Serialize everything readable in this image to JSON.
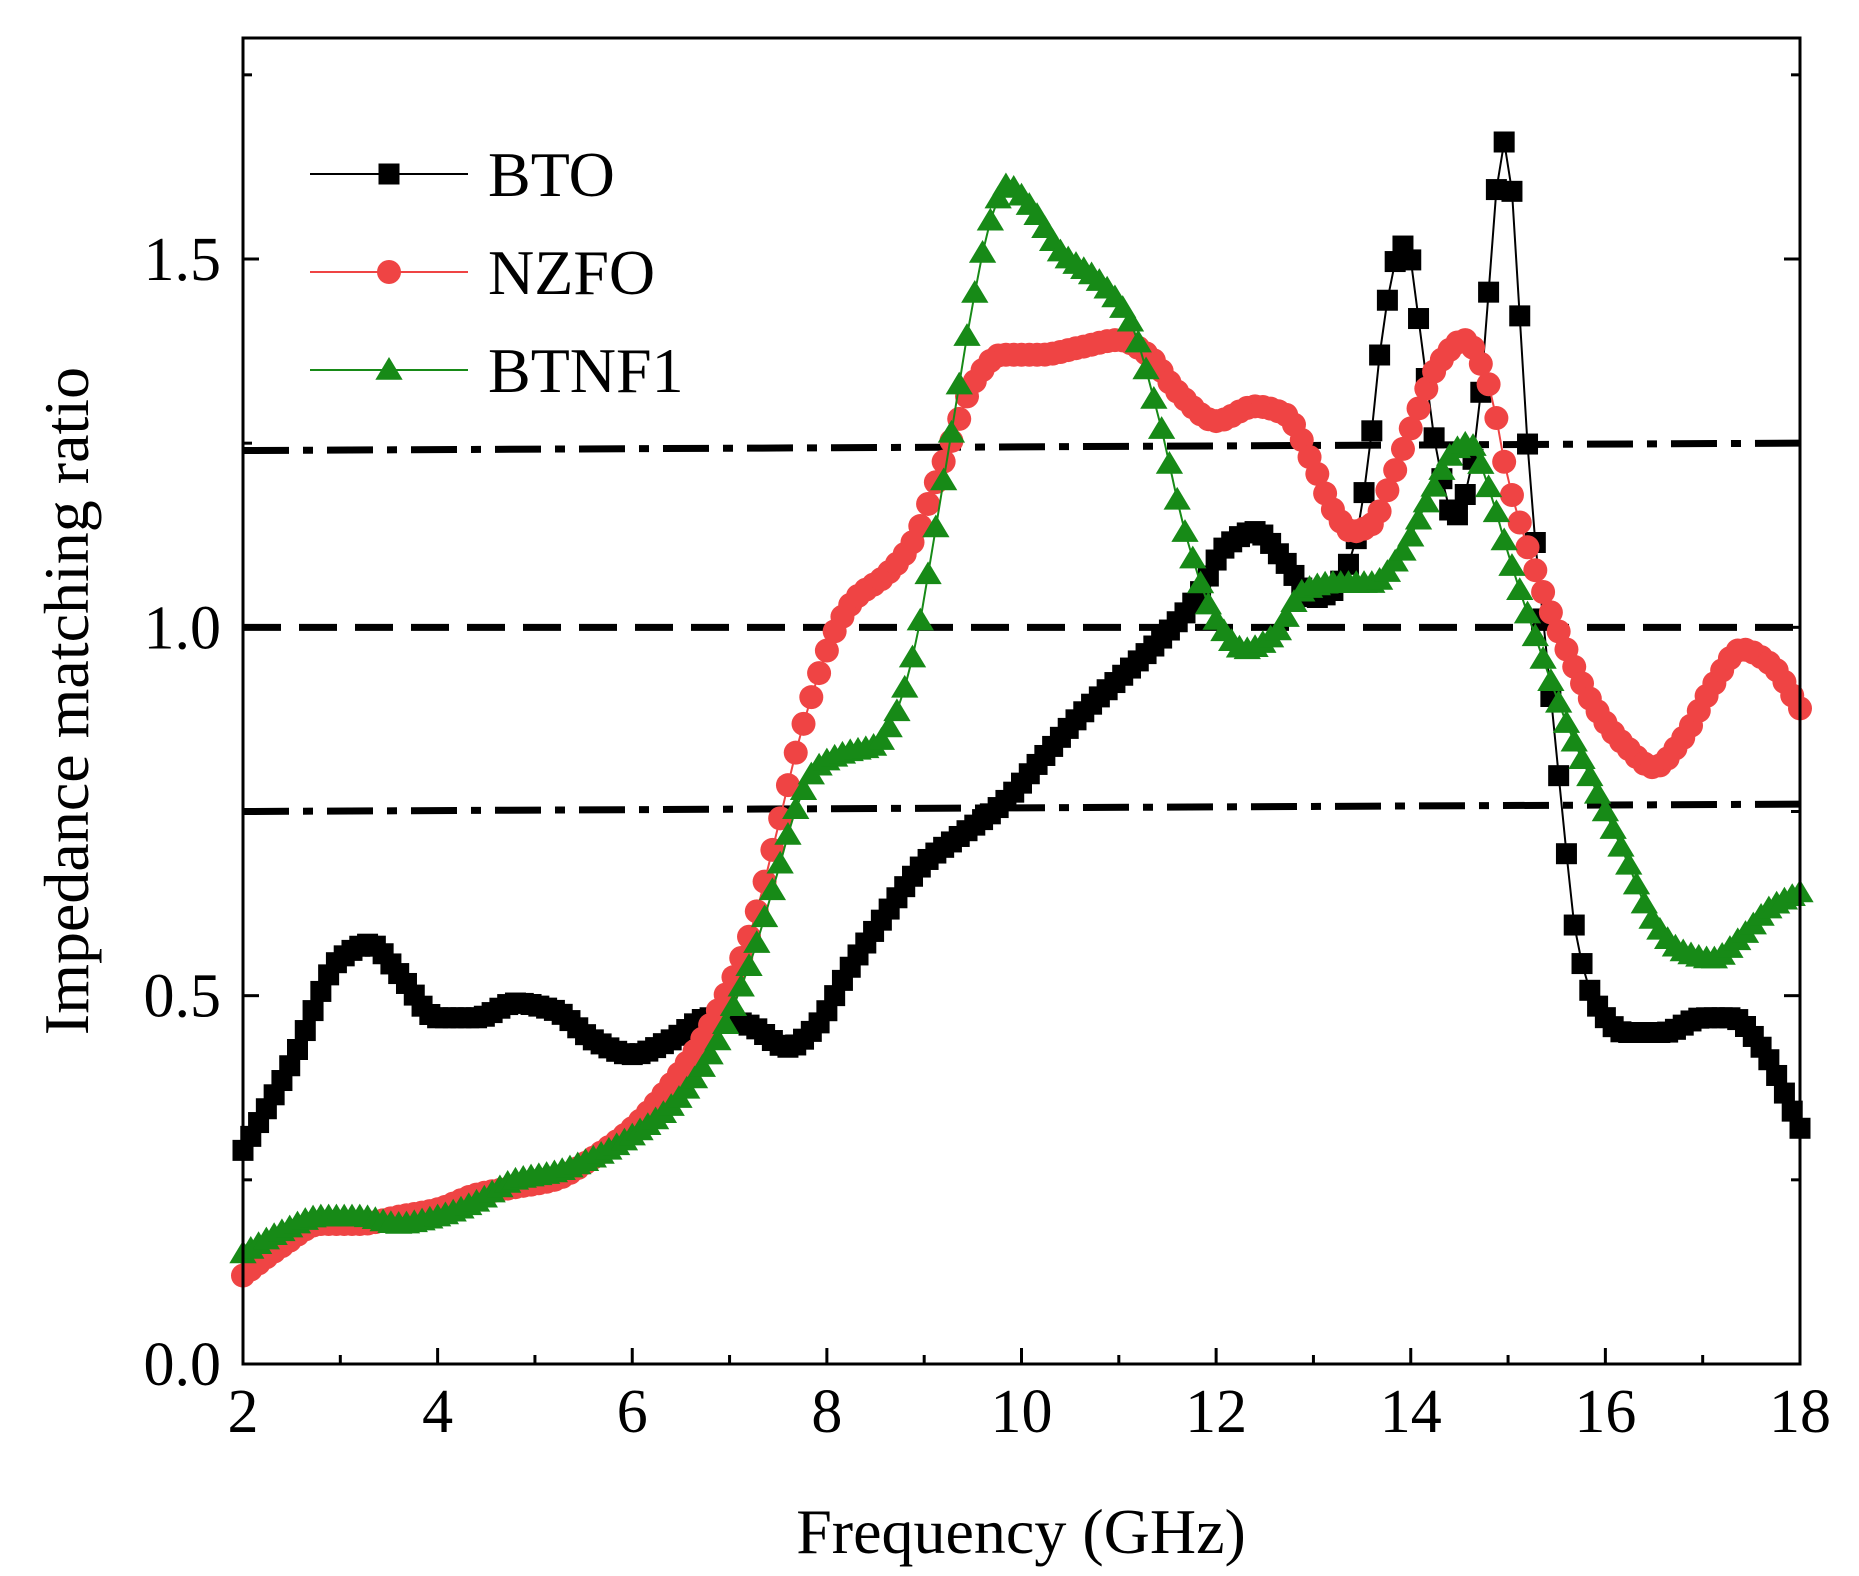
{
  "chart_data": {
    "type": "scatter",
    "title": "",
    "xlabel": "Frequency (GHz)",
    "ylabel": "Impedance matching ratio",
    "xlim": [
      2,
      18
    ],
    "ylim": [
      0,
      1.8
    ],
    "xticks": [
      2,
      4,
      6,
      8,
      10,
      12,
      14,
      16,
      18
    ],
    "xtick_labels": [
      "2",
      "4",
      "6",
      "8",
      "10",
      "12",
      "14",
      "16",
      "18"
    ],
    "yticks": [
      0,
      0.5,
      1.0,
      1.5
    ],
    "ytick_labels": [
      "0.0",
      "0.5",
      "1.0",
      "1.5"
    ],
    "grid": false,
    "legend_position": "top-left",
    "reference_lines": [
      {
        "name": "upper-bound",
        "style": "dash-dot",
        "color": "#000000",
        "y_left": 1.24,
        "y_right": 1.25
      },
      {
        "name": "unity",
        "style": "dashed",
        "color": "#000000",
        "y_left": 1.0,
        "y_right": 1.0
      },
      {
        "name": "lower-bound",
        "style": "dash-dot",
        "color": "#000000",
        "y_left": 0.75,
        "y_right": 0.76
      }
    ],
    "series": [
      {
        "name": "BTO",
        "marker": "square",
        "color": "#000000",
        "points": [
          [
            2.0,
            0.29
          ],
          [
            2.5,
            0.41
          ],
          [
            3.0,
            0.55
          ],
          [
            3.3,
            0.57
          ],
          [
            3.6,
            0.53
          ],
          [
            4.0,
            0.47
          ],
          [
            4.4,
            0.47
          ],
          [
            4.8,
            0.49
          ],
          [
            5.2,
            0.48
          ],
          [
            5.6,
            0.44
          ],
          [
            6.0,
            0.42
          ],
          [
            6.4,
            0.44
          ],
          [
            6.8,
            0.47
          ],
          [
            7.2,
            0.46
          ],
          [
            7.6,
            0.43
          ],
          [
            7.9,
            0.46
          ],
          [
            8.2,
            0.53
          ],
          [
            8.6,
            0.61
          ],
          [
            9.0,
            0.68
          ],
          [
            9.4,
            0.72
          ],
          [
            9.8,
            0.76
          ],
          [
            10.2,
            0.82
          ],
          [
            10.6,
            0.88
          ],
          [
            11.0,
            0.93
          ],
          [
            11.4,
            0.98
          ],
          [
            11.8,
            1.04
          ],
          [
            12.1,
            1.11
          ],
          [
            12.4,
            1.13
          ],
          [
            12.7,
            1.09
          ],
          [
            13.0,
            1.04
          ],
          [
            13.2,
            1.05
          ],
          [
            13.4,
            1.1
          ],
          [
            13.55,
            1.21
          ],
          [
            13.7,
            1.39
          ],
          [
            13.85,
            1.5
          ],
          [
            13.95,
            1.52
          ],
          [
            14.1,
            1.4
          ],
          [
            14.25,
            1.25
          ],
          [
            14.45,
            1.15
          ],
          [
            14.6,
            1.2
          ],
          [
            14.75,
            1.36
          ],
          [
            14.85,
            1.55
          ],
          [
            14.95,
            1.66
          ],
          [
            15.05,
            1.58
          ],
          [
            15.15,
            1.35
          ],
          [
            15.25,
            1.16
          ],
          [
            15.4,
            0.96
          ],
          [
            15.55,
            0.76
          ],
          [
            15.7,
            0.58
          ],
          [
            15.9,
            0.49
          ],
          [
            16.2,
            0.45
          ],
          [
            16.6,
            0.45
          ],
          [
            17.0,
            0.47
          ],
          [
            17.3,
            0.47
          ],
          [
            17.6,
            0.43
          ],
          [
            18.0,
            0.32
          ]
        ]
      },
      {
        "name": "NZFO",
        "marker": "circle",
        "color": "#EF4444",
        "points": [
          [
            2.0,
            0.12
          ],
          [
            2.4,
            0.16
          ],
          [
            2.8,
            0.19
          ],
          [
            3.2,
            0.19
          ],
          [
            3.6,
            0.2
          ],
          [
            4.0,
            0.21
          ],
          [
            4.4,
            0.23
          ],
          [
            4.8,
            0.24
          ],
          [
            5.2,
            0.25
          ],
          [
            5.6,
            0.28
          ],
          [
            6.0,
            0.32
          ],
          [
            6.4,
            0.38
          ],
          [
            6.8,
            0.46
          ],
          [
            7.2,
            0.58
          ],
          [
            7.5,
            0.73
          ],
          [
            7.7,
            0.84
          ],
          [
            7.9,
            0.93
          ],
          [
            8.1,
            1.0
          ],
          [
            8.3,
            1.04
          ],
          [
            8.6,
            1.07
          ],
          [
            8.9,
            1.12
          ],
          [
            9.1,
            1.19
          ],
          [
            9.3,
            1.26
          ],
          [
            9.5,
            1.33
          ],
          [
            9.8,
            1.37
          ],
          [
            10.2,
            1.37
          ],
          [
            10.6,
            1.38
          ],
          [
            11.0,
            1.39
          ],
          [
            11.3,
            1.37
          ],
          [
            11.6,
            1.32
          ],
          [
            12.0,
            1.28
          ],
          [
            12.4,
            1.3
          ],
          [
            12.7,
            1.29
          ],
          [
            13.0,
            1.22
          ],
          [
            13.2,
            1.16
          ],
          [
            13.4,
            1.13
          ],
          [
            13.6,
            1.14
          ],
          [
            13.8,
            1.2
          ],
          [
            14.0,
            1.27
          ],
          [
            14.3,
            1.36
          ],
          [
            14.55,
            1.39
          ],
          [
            14.8,
            1.33
          ],
          [
            15.0,
            1.2
          ],
          [
            15.3,
            1.07
          ],
          [
            15.6,
            0.97
          ],
          [
            15.9,
            0.89
          ],
          [
            16.2,
            0.84
          ],
          [
            16.5,
            0.81
          ],
          [
            16.8,
            0.85
          ],
          [
            17.1,
            0.92
          ],
          [
            17.4,
            0.97
          ],
          [
            17.7,
            0.95
          ],
          [
            18.0,
            0.89
          ]
        ]
      },
      {
        "name": "BTNF1",
        "marker": "triangle",
        "color": "#178A17",
        "points": [
          [
            2.0,
            0.15
          ],
          [
            2.4,
            0.18
          ],
          [
            2.8,
            0.2
          ],
          [
            3.2,
            0.2
          ],
          [
            3.6,
            0.19
          ],
          [
            4.0,
            0.2
          ],
          [
            4.4,
            0.22
          ],
          [
            4.8,
            0.25
          ],
          [
            5.2,
            0.26
          ],
          [
            5.6,
            0.28
          ],
          [
            6.0,
            0.31
          ],
          [
            6.4,
            0.35
          ],
          [
            6.8,
            0.42
          ],
          [
            7.2,
            0.54
          ],
          [
            7.5,
            0.67
          ],
          [
            7.7,
            0.76
          ],
          [
            7.9,
            0.81
          ],
          [
            8.2,
            0.83
          ],
          [
            8.5,
            0.84
          ],
          [
            8.7,
            0.88
          ],
          [
            8.9,
            0.97
          ],
          [
            9.1,
            1.12
          ],
          [
            9.3,
            1.28
          ],
          [
            9.5,
            1.44
          ],
          [
            9.7,
            1.56
          ],
          [
            9.85,
            1.6
          ],
          [
            10.1,
            1.57
          ],
          [
            10.4,
            1.51
          ],
          [
            10.8,
            1.47
          ],
          [
            11.1,
            1.42
          ],
          [
            11.4,
            1.29
          ],
          [
            11.7,
            1.12
          ],
          [
            12.0,
            1.01
          ],
          [
            12.3,
            0.97
          ],
          [
            12.6,
            0.99
          ],
          [
            12.9,
            1.05
          ],
          [
            13.2,
            1.06
          ],
          [
            13.6,
            1.06
          ],
          [
            13.9,
            1.1
          ],
          [
            14.2,
            1.18
          ],
          [
            14.45,
            1.24
          ],
          [
            14.6,
            1.25
          ],
          [
            14.8,
            1.19
          ],
          [
            15.0,
            1.1
          ],
          [
            15.3,
            0.98
          ],
          [
            15.6,
            0.87
          ],
          [
            15.9,
            0.78
          ],
          [
            16.2,
            0.69
          ],
          [
            16.5,
            0.6
          ],
          [
            16.8,
            0.56
          ],
          [
            17.1,
            0.55
          ],
          [
            17.4,
            0.58
          ],
          [
            17.7,
            0.62
          ],
          [
            18.0,
            0.64
          ]
        ]
      }
    ]
  }
}
